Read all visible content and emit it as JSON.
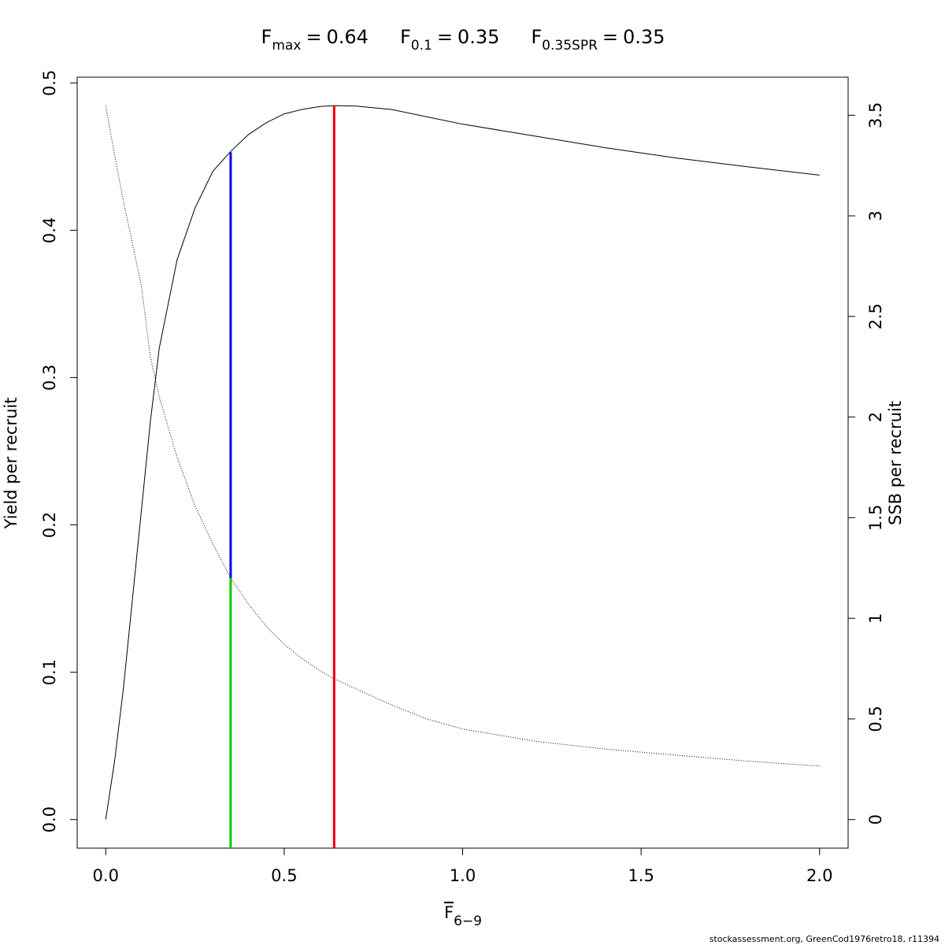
{
  "chart_data": {
    "type": "line",
    "title_parts": [
      {
        "symbol": "F",
        "subscript": "max",
        "relation": "=",
        "value": 0.64
      },
      {
        "symbol": "F",
        "subscript": "0.1",
        "relation": "=",
        "value": 0.35
      },
      {
        "symbol": "F",
        "subscript": "0.35SPR",
        "relation": "=",
        "value": 0.35
      }
    ],
    "xlabel": {
      "symbol": "F",
      "subscript": "6−9"
    },
    "ylabel": "Yield per recruit",
    "y2label": "SSB per recruit",
    "footer": "stockassessment.org, GreenCod1976retro18, r11394",
    "x": [
      0,
      0.025,
      0.05,
      0.075,
      0.1,
      0.125,
      0.15,
      0.2,
      0.25,
      0.3,
      0.35,
      0.4,
      0.45,
      0.5,
      0.55,
      0.6,
      0.64,
      0.7,
      0.8,
      0.9,
      1.0,
      1.2,
      1.4,
      1.6,
      1.8,
      2.0
    ],
    "series": [
      {
        "color": "#000000",
        "dash": "solid",
        "axis": "y",
        "values": [
          0,
          0.04,
          0.09,
          0.15,
          0.21,
          0.27,
          0.32,
          0.38,
          0.415,
          0.44,
          0.4535,
          0.465,
          0.473,
          0.479,
          0.482,
          0.484,
          0.4846,
          0.4843,
          0.482,
          0.477,
          0.472,
          0.464,
          0.456,
          0.449,
          0.443,
          0.4374
        ]
      },
      {
        "color": "#000000",
        "dash": "dotted",
        "axis": "y2",
        "values": [
          3.547,
          3.3,
          3.07,
          2.86,
          2.65,
          2.3,
          2.1,
          1.8,
          1.56,
          1.37,
          1.2,
          1.07,
          0.96,
          0.87,
          0.8,
          0.74,
          0.7,
          0.65,
          0.57,
          0.5,
          0.45,
          0.39,
          0.35,
          0.32,
          0.29,
          0.266
        ]
      }
    ],
    "vlines": [
      {
        "x": 0.64,
        "ymax": 0.4846,
        "color": "#e8000b"
      },
      {
        "x": 0.35,
        "y2min": 1.2,
        "ymax": 0.453,
        "color": "#0000ee"
      },
      {
        "x": 0.35,
        "y2max": 1.2,
        "color": "#00cc00"
      }
    ],
    "xlim": [
      -0.08,
      2.08
    ],
    "ylim": [
      -0.0194,
      0.5039
    ],
    "y2lim": [
      -0.142,
      3.689
    ],
    "xticks": [
      {
        "value": 0,
        "label": "0.0"
      },
      0.5,
      {
        "value": 1,
        "label": "1.0"
      },
      1.5,
      {
        "value": 2,
        "label": "2.0"
      }
    ],
    "yticks": [
      {
        "value": 0,
        "label": "0.0"
      },
      0.1,
      0.2,
      0.3,
      0.4,
      0.5
    ],
    "y2ticks": [
      0,
      0.5,
      1,
      1.5,
      2,
      2.5,
      3,
      3.5
    ]
  }
}
